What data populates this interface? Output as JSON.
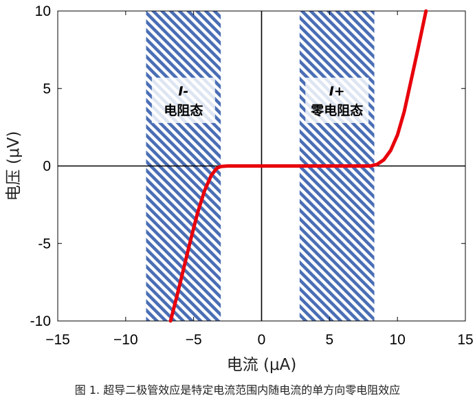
{
  "chart_data": {
    "type": "line",
    "xlabel": "电流 (μA)",
    "ylabel": "电压 (μV)",
    "xlim": [
      -15,
      15
    ],
    "ylim": [
      -10,
      10
    ],
    "xticks": [
      -15,
      -10,
      -5,
      0,
      5,
      10,
      15
    ],
    "xtick_labels": [
      "−15",
      "−10",
      "−5",
      "0",
      "5",
      "10",
      "15"
    ],
    "yticks": [
      -10,
      -5,
      0,
      5,
      10
    ],
    "ytick_labels": [
      "-10",
      "-5",
      "0",
      "5",
      "10"
    ],
    "grid": false,
    "series": [
      {
        "color": "#e8000b",
        "x": [
          -6.7,
          -6.2,
          -5.7,
          -5.2,
          -4.7,
          -4.2,
          -3.7,
          -3.3,
          -3.0,
          -2.5,
          -2.0,
          0.0,
          2.0,
          4.0,
          6.0,
          7.0,
          8.0,
          8.5,
          9.0,
          9.5,
          10.0,
          10.5,
          11.0,
          11.5,
          12.1
        ],
        "y": [
          -10.0,
          -8.3,
          -6.5,
          -4.7,
          -3.0,
          -1.6,
          -0.6,
          -0.15,
          -0.03,
          0.0,
          0.0,
          0.0,
          0.0,
          0.0,
          0.0,
          0.0,
          0.0,
          0.1,
          0.4,
          1.0,
          2.0,
          3.5,
          5.5,
          7.5,
          10.0
        ]
      }
    ],
    "regions": [
      {
        "x_range": [
          -8.5,
          -3.0
        ],
        "label_line1": "I-",
        "label_line2": "电阻态"
      },
      {
        "x_range": [
          2.8,
          8.3
        ],
        "label_line1": "I+",
        "label_line2": "零电阻态"
      }
    ],
    "colors": {
      "hatch": "#4a6eb5",
      "curve": "#e8000b",
      "axis": "#000000"
    }
  },
  "caption": "图 1. 超导二极管效应是特定电流范围内随电流的单方向零电阻效应"
}
